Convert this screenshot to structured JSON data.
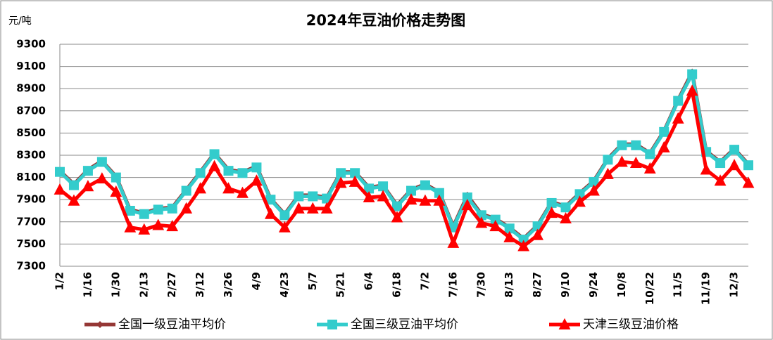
{
  "chart_data": {
    "type": "line",
    "title": "2024年豆油价格走势图",
    "y_label": "元/吨",
    "categories": [
      "1/2",
      null,
      "1/16",
      null,
      "1/30",
      null,
      "2/13",
      null,
      "2/27",
      null,
      "3/12",
      null,
      "3/26",
      null,
      "4/9",
      null,
      "4/23",
      null,
      "5/7",
      null,
      "5/21",
      null,
      "6/4",
      null,
      "6/18",
      null,
      "7/2",
      null,
      "7/16",
      null,
      "7/30",
      null,
      "8/13",
      null,
      "8/27",
      null,
      "9/10",
      null,
      "9/24",
      null,
      "10/8",
      null,
      "10/22",
      null,
      "11/5",
      null,
      "11/19",
      null,
      "12/3",
      null
    ],
    "series": [
      {
        "name": "全国一级豆油平均价",
        "color": "#953735",
        "marker": "diamond",
        "values": [
          8160,
          8040,
          8170,
          8250,
          8110,
          7810,
          7780,
          7820,
          7830,
          7990,
          8150,
          8320,
          8170,
          8150,
          8200,
          7910,
          7770,
          7940,
          7940,
          7920,
          8150,
          8150,
          8010,
          8030,
          7850,
          7990,
          8040,
          7970,
          7660,
          7940,
          7770,
          7730,
          7650,
          7550,
          7670,
          7880,
          7840,
          7960,
          8070,
          8270,
          8400,
          8400,
          8320,
          8520,
          8800,
          9050,
          8340,
          8240,
          8360,
          8220
        ]
      },
      {
        "name": "全国三级豆油平均价",
        "color": "#33cccc",
        "marker": "square",
        "values": [
          8150,
          8030,
          8160,
          8240,
          8100,
          7800,
          7770,
          7810,
          7820,
          7980,
          8140,
          8310,
          8160,
          8140,
          8190,
          7900,
          7760,
          7930,
          7930,
          7910,
          8140,
          8140,
          8000,
          8020,
          7840,
          7980,
          8030,
          7960,
          7650,
          7920,
          7760,
          7720,
          7640,
          7540,
          7660,
          7870,
          7830,
          7950,
          8060,
          8260,
          8390,
          8390,
          8310,
          8510,
          8790,
          9030,
          8330,
          8230,
          8350,
          8210
        ]
      },
      {
        "name": "天津三级豆油价格",
        "color": "#ff0000",
        "marker": "triangle",
        "values": [
          7990,
          7890,
          8020,
          8090,
          7970,
          7650,
          7630,
          7670,
          7660,
          7820,
          8000,
          8200,
          8000,
          7960,
          8070,
          7770,
          7650,
          7820,
          7820,
          7820,
          8050,
          8060,
          7920,
          7930,
          7740,
          7900,
          7890,
          7890,
          7510,
          7850,
          7690,
          7660,
          7560,
          7480,
          7580,
          7780,
          7730,
          7880,
          7980,
          8130,
          8240,
          8230,
          8180,
          8370,
          8630,
          8880,
          8170,
          8070,
          8210,
          8050
        ]
      }
    ],
    "ylim": [
      7300,
      9300
    ],
    "yticks": [
      7300,
      7500,
      7700,
      7900,
      8100,
      8300,
      8500,
      8700,
      8900,
      9100,
      9300
    ],
    "grid": true
  }
}
